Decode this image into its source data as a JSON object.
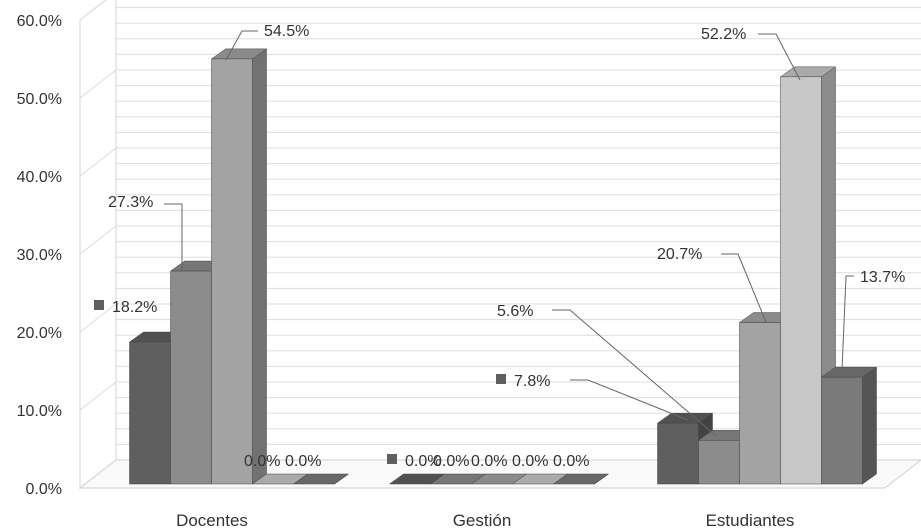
{
  "chart_data": {
    "type": "bar",
    "style": "3d-clustered-column",
    "categories": [
      "Docentes",
      "Gestión",
      "Estudiantes"
    ],
    "series": [
      {
        "values": [
          18.2,
          0.0,
          7.8
        ],
        "labels": [
          "18.2%",
          "0.0%",
          "7.8%"
        ],
        "color": "#5f5f5f"
      },
      {
        "values": [
          27.3,
          0.0,
          5.6
        ],
        "labels": [
          "27.3%",
          "0.0%",
          "5.6%"
        ],
        "color": "#8c8c8c"
      },
      {
        "values": [
          54.5,
          0.0,
          20.7
        ],
        "labels": [
          "54.5%",
          "0.0%",
          "20.7%"
        ],
        "color": "#a3a3a3"
      },
      {
        "values": [
          0.0,
          0.0,
          52.2
        ],
        "labels": [
          "0.0%",
          "0.0%",
          "52.2%"
        ],
        "color": "#c8c8c8"
      },
      {
        "values": [
          0.0,
          0.0,
          13.7
        ],
        "labels": [
          "0.0%",
          "0.0%",
          "13.7%"
        ],
        "color": "#7a7a7a"
      }
    ],
    "yticks": [
      "0.0%",
      "10.0%",
      "20.0%",
      "30.0%",
      "40.0%",
      "50.0%",
      "60.0%"
    ],
    "ylim": [
      0,
      60
    ],
    "grid": true,
    "legend": "none",
    "xlabel": "",
    "ylabel": ""
  }
}
